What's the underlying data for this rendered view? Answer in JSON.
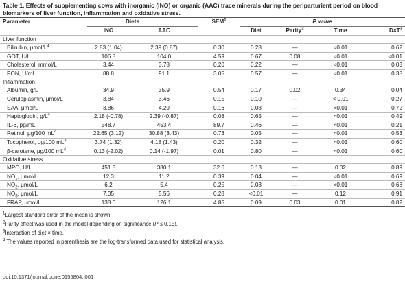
{
  "caption": {
    "label": "Table 1.",
    "text": "Effects of supplementing cows with inorganic (INO) or organic (AAC) trace minerals during the periparturient period on blood biomarkers of liver function, inflammation and oxidative stress."
  },
  "header": {
    "parameter": "Parameter",
    "diets": "Diets",
    "sem": "SEM",
    "sem_sup": "1",
    "pvalue": "P value",
    "ino": "INO",
    "aac": "AAC",
    "diet": "Diet",
    "parity": "Parity",
    "parity_sup": "2",
    "time": "Time",
    "dxt": "D×T",
    "dxt_sup": "3"
  },
  "sections": {
    "liver": "Liver function",
    "inflammation": "Inflammation",
    "oxidative": "Oxidative stress"
  },
  "rows": {
    "bili": {
      "param": "Bilirubin, μmol/L",
      "sup": "4",
      "ino": "2.83 (1.04)",
      "aac": "2.39 (0.87)",
      "sem": "0.30",
      "diet": "0.28",
      "parity": "—",
      "time": "<0.01",
      "dxt": "0.62"
    },
    "got": {
      "param": "GOT, U/L",
      "ino": "106.8",
      "aac": "104.0",
      "sem": "4.59",
      "diet": "0.67",
      "parity": "0.08",
      "time": "<0.01",
      "dxt": "<0.01"
    },
    "chol": {
      "param": "Cholesterol, mmol/L",
      "ino": "3.44",
      "aac": "3.78",
      "sem": "0.20",
      "diet": "0.22",
      "parity": "—",
      "time": "<0.01",
      "dxt": "0.03"
    },
    "pon": {
      "param": "PON, U/mL",
      "ino": "88.8",
      "aac": "91.1",
      "sem": "3.05",
      "diet": "0.57",
      "parity": "—",
      "time": "<0.01",
      "dxt": "0.38"
    },
    "alb": {
      "param": "Albumin, g/L",
      "ino": "34.9",
      "aac": "35.9",
      "sem": "0.54",
      "diet": "0.17",
      "parity": "0.02",
      "time": "0.34",
      "dxt": "0.04"
    },
    "cer": {
      "param": "Ceruloplasmin, μmol/L",
      "ino": "3.84",
      "aac": "3.46",
      "sem": "0.15",
      "diet": "0.10",
      "parity": "—",
      "time": "< 0.01",
      "dxt": "0.27"
    },
    "saa": {
      "param": "SAA, μmol/L",
      "ino": "3.86",
      "aac": "4.29",
      "sem": "0.16",
      "diet": "0.08",
      "parity": "—",
      "time": "<0.01",
      "dxt": "0.72"
    },
    "hapt": {
      "param": "Haptoglobin, g/L",
      "sup": "4",
      "ino": "2.18 (-0.78)",
      "aac": "2.39 (-0.87)",
      "sem": "0.08",
      "diet": "0.65",
      "parity": "—",
      "time": "<0.01",
      "dxt": "0.49"
    },
    "il6": {
      "param": "IL-6, pg/mL",
      "ino": "548.7",
      "aac": "453.4",
      "sem": "89.7",
      "diet": "0.46",
      "parity": "—",
      "time": "<0.01",
      "dxt": "0.21"
    },
    "ret": {
      "param": "Retinol, μg/100 mL",
      "sup": "4",
      "ino": "22.65 (3.12)",
      "aac": "30.88 (3.43)",
      "sem": "0.73",
      "diet": "0.05",
      "parity": "—",
      "time": "<0.01",
      "dxt": "0.53"
    },
    "toc": {
      "param": "Tocopherol, μg/100 mL",
      "sup": "4",
      "ino": "3.74 (1.32)",
      "aac": "4.18 (1.43)",
      "sem": "0.20",
      "diet": "0.32",
      "parity": "—",
      "time": "<0.01",
      "dxt": "0.60"
    },
    "bcar": {
      "param": "β-carotene, μg/100 mL",
      "sup": "4",
      "ino": "0.13 (-2.02)",
      "aac": "0.14 (-1.97)",
      "sem": "0.01",
      "diet": "0.80",
      "parity": "—",
      "time": "<0.01",
      "dxt": "0.60"
    },
    "mpo": {
      "param": "MPO, U/L",
      "ino": "451.5",
      "aac": "380.1",
      "sem": "32.6",
      "diet": "0.13",
      "parity": "—",
      "time": "0.02",
      "dxt": "0.89"
    },
    "nox": {
      "param_a": "NO",
      "param_sub": "x",
      "param_b": ", μmol/L",
      "ino": "12.3",
      "aac": "11.2",
      "sem": "0.39",
      "diet": "0.04",
      "parity": "—",
      "time": "<0.01",
      "dxt": "0.69"
    },
    "no2": {
      "param_a": "NO",
      "param_sub": "2",
      "param_b": ", μmol/L",
      "ino": "6.2",
      "aac": "5.4",
      "sem": "0.25",
      "diet": "0.03",
      "parity": "—",
      "time": "<0.01",
      "dxt": "0.68"
    },
    "no3": {
      "param_a": "NO",
      "param_sub": "3",
      "param_b": ", μmol/L",
      "ino": "7.05",
      "aac": "5.56",
      "sem": "0.28",
      "diet": "<0.01",
      "parity": "—",
      "time": "0.12",
      "dxt": "0.91"
    },
    "frap": {
      "param": "FRAP, μmol/L",
      "ino": "138.6",
      "aac": "126.1",
      "sem": "4.85",
      "diet": "0.09",
      "parity": "0.03",
      "time": "0.01",
      "dxt": "0.82"
    }
  },
  "footnotes": {
    "f1_sup": "1",
    "f1": "Largest standard error of the mean is shown.",
    "f2_sup": "2",
    "f2_a": "Parity effect was used in the model depending on significance (",
    "f2_p": "P",
    "f2_b": " ≤ 0.15).",
    "f3_sup": "3",
    "f3": "Interaction of diet × time.",
    "f4_sup": "4",
    "f4": " The values reported in parenthesis are the log-transformed data used for statistical analysis."
  },
  "doi": "doi:10.1371/journal.pone.0155804.t001"
}
